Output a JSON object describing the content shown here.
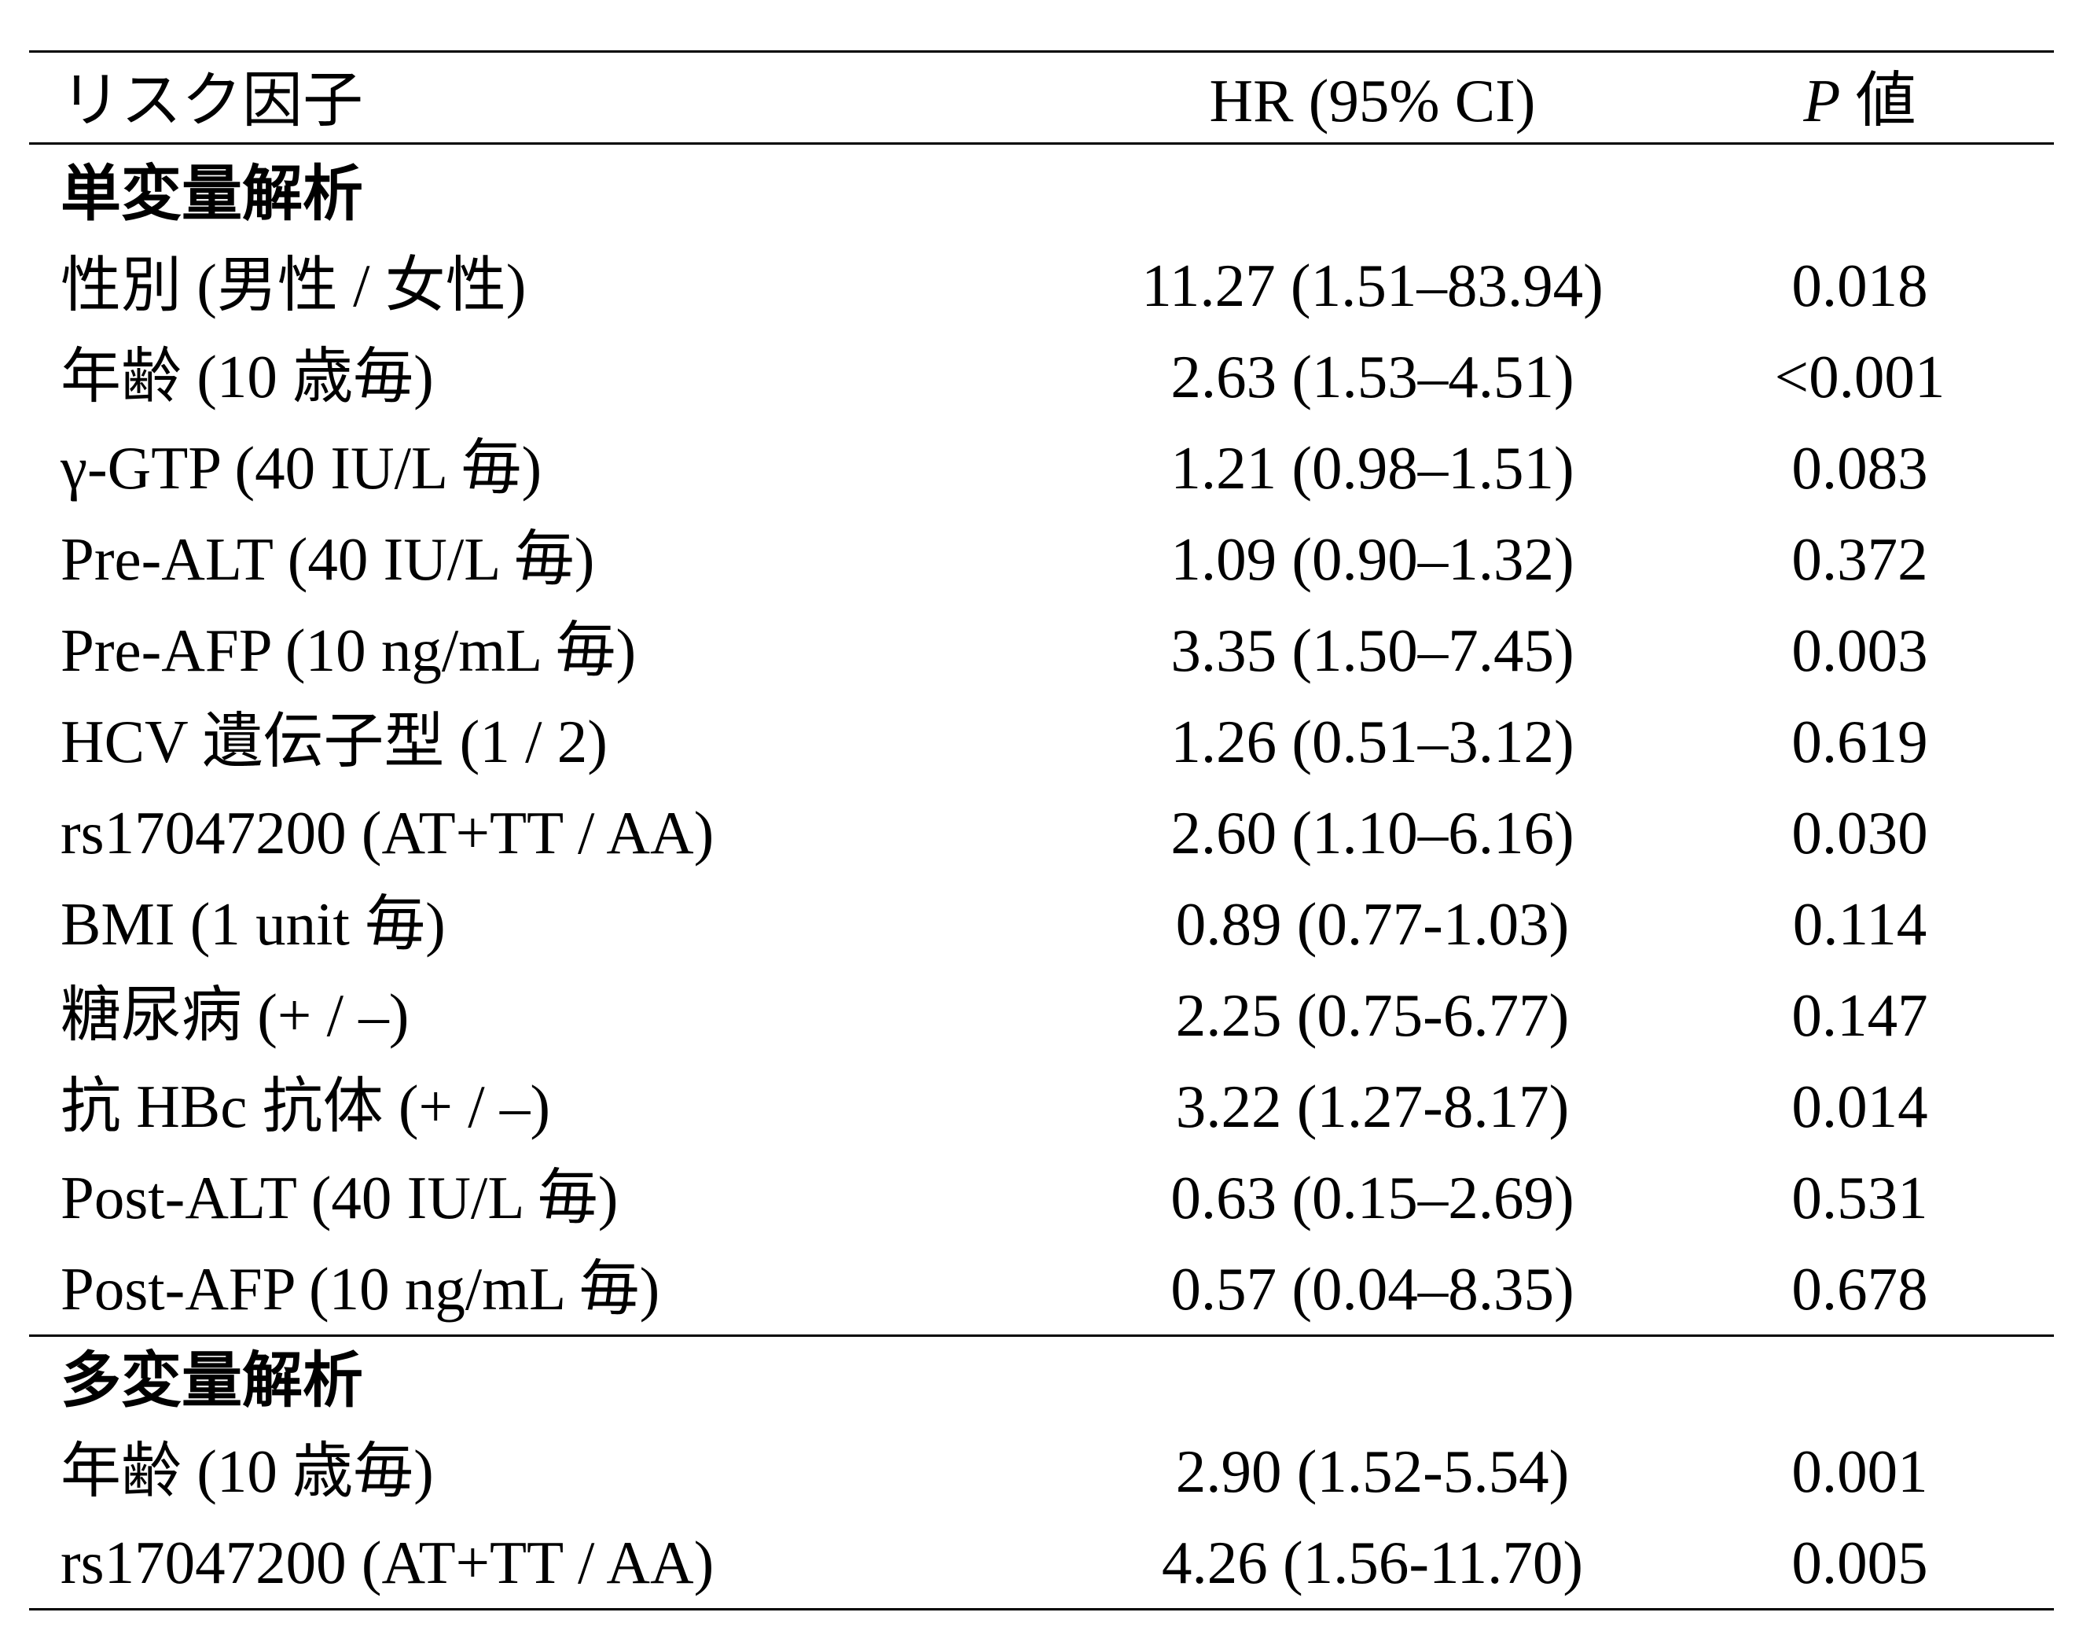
{
  "table": {
    "header": {
      "risk_factor": "リスク因子",
      "hr": "HR (95% CI)",
      "p_symbol": "P",
      "p_label": "値"
    },
    "univariate": {
      "title": "単変量解析",
      "rows": [
        {
          "factor": "性別 (男性 / 女性)",
          "hr": "11.27 (1.51–83.94)",
          "p": "0.018"
        },
        {
          "factor": "年齢 (10 歳毎)",
          "hr": "2.63 (1.53–4.51)",
          "p": "<0.001"
        },
        {
          "factor": "γ-GTP (40 IU/L 毎)",
          "hr": "1.21 (0.98–1.51)",
          "p": "0.083"
        },
        {
          "factor": "Pre-ALT (40 IU/L 毎)",
          "hr": "1.09 (0.90–1.32)",
          "p": "0.372"
        },
        {
          "factor": "Pre-AFP (10 ng/mL 毎)",
          "hr": "3.35 (1.50–7.45)",
          "p": "0.003"
        },
        {
          "factor": "HCV 遺伝子型 (1 / 2)",
          "hr": "1.26 (0.51–3.12)",
          "p": "0.619"
        },
        {
          "factor": "rs17047200 (AT+TT / AA)",
          "hr": "2.60 (1.10–6.16)",
          "p": "0.030"
        },
        {
          "factor": "BMI (1 unit 毎)",
          "hr": "0.89 (0.77-1.03)",
          "p": "0.114"
        },
        {
          "factor": "糖尿病 (+ / –)",
          "hr": "2.25 (0.75-6.77)",
          "p": "0.147"
        },
        {
          "factor": "抗 HBc 抗体 (+ / –)",
          "hr": "3.22 (1.27-8.17)",
          "p": "0.014"
        },
        {
          "factor": "Post-ALT (40 IU/L 毎)",
          "hr": "0.63 (0.15–2.69)",
          "p": "0.531"
        },
        {
          "factor": "Post-AFP (10 ng/mL 毎)",
          "hr": "0.57 (0.04–8.35)",
          "p": "0.678"
        }
      ]
    },
    "multivariate": {
      "title": "多変量解析",
      "rows": [
        {
          "factor": "年齢 (10 歳毎)",
          "hr": "2.90 (1.52-5.54)",
          "p": "0.001"
        },
        {
          "factor": "rs17047200 (AT+TT / AA)",
          "hr": "4.26 (1.56-11.70)",
          "p": "0.005"
        }
      ]
    }
  }
}
